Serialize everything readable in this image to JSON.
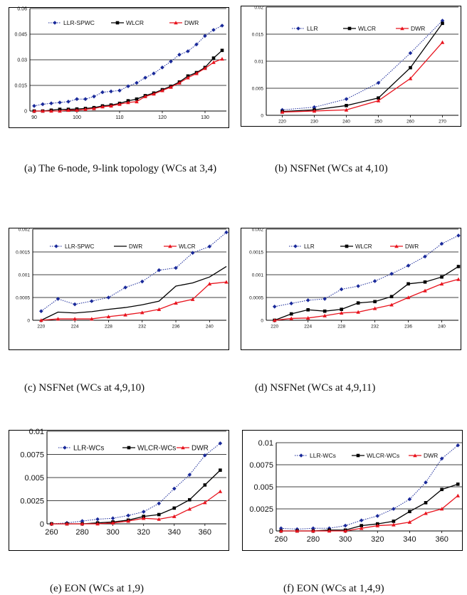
{
  "chart_data": [
    {
      "type": "line",
      "caption": "(a) The 6-node, 9-link topology (WCs at 3,4)",
      "x": [
        90,
        92,
        94,
        96,
        98,
        100,
        102,
        104,
        106,
        108,
        110,
        112,
        114,
        116,
        118,
        120,
        122,
        124,
        126,
        128,
        130,
        132,
        134
      ],
      "xticks": [
        "90",
        "100",
        "110",
        "120",
        "130"
      ],
      "xtick_values": [
        90,
        100,
        110,
        120,
        130
      ],
      "yticks": [
        "0",
        "0.015",
        "0.03",
        "0.045",
        "0.06"
      ],
      "ylim": [
        0,
        0.06
      ],
      "xlim": [
        89,
        135
      ],
      "series": [
        {
          "name": "LLR-SPWC",
          "color": "#1a2a9a",
          "style": "dotted",
          "marker": "diamond",
          "values": [
            0.003,
            0.004,
            0.0045,
            0.005,
            0.0055,
            0.007,
            0.007,
            0.0085,
            0.011,
            0.0115,
            0.012,
            0.0145,
            0.0165,
            0.0195,
            0.022,
            0.0255,
            0.029,
            0.033,
            0.035,
            0.039,
            0.044,
            0.0475,
            0.05
          ]
        },
        {
          "name": "WLCR",
          "color": "#000000",
          "style": "solid",
          "marker": "square",
          "values": [
            0,
            0,
            0.0005,
            0.001,
            0.001,
            0.0012,
            0.0015,
            0.002,
            0.003,
            0.0035,
            0.0045,
            0.006,
            0.007,
            0.009,
            0.0105,
            0.0125,
            0.0145,
            0.017,
            0.0205,
            0.0225,
            0.0255,
            0.031,
            0.0355
          ]
        },
        {
          "name": "DWR",
          "color": "#e8141e",
          "style": "solid",
          "marker": "triangle",
          "values": [
            0,
            0,
            0,
            0,
            0.0005,
            0.0005,
            0.001,
            0.0015,
            0.0025,
            0.003,
            0.004,
            0.005,
            0.0055,
            0.0085,
            0.01,
            0.012,
            0.014,
            0.0165,
            0.0195,
            0.022,
            0.025,
            0.0285,
            0.0305
          ]
        }
      ]
    },
    {
      "type": "line",
      "caption": "(b) NSFNet (WCs at 4,10)",
      "x": [
        220,
        230,
        240,
        250,
        260,
        270
      ],
      "xticks": [
        "220",
        "230",
        "240",
        "250",
        "260",
        "270"
      ],
      "xtick_values": [
        220,
        230,
        240,
        250,
        260,
        270
      ],
      "yticks": [
        "0",
        "0.005",
        "0.01",
        "0.015",
        "0.02"
      ],
      "ylim": [
        0,
        0.02
      ],
      "xlim": [
        215,
        275
      ],
      "series": [
        {
          "name": "LLR",
          "color": "#1a2a9a",
          "style": "dotted",
          "marker": "diamond",
          "values": [
            0.001,
            0.0015,
            0.003,
            0.006,
            0.0115,
            0.0175
          ]
        },
        {
          "name": "WLCR",
          "color": "#000000",
          "style": "solid",
          "marker": "square",
          "values": [
            0.0007,
            0.001,
            0.0018,
            0.0032,
            0.0088,
            0.017
          ]
        },
        {
          "name": "DWR",
          "color": "#e8141e",
          "style": "solid",
          "marker": "triangle",
          "values": [
            0.0006,
            0.0008,
            0.001,
            0.0027,
            0.0068,
            0.0135
          ]
        }
      ]
    },
    {
      "type": "line",
      "caption": "(c) NSFNet (WCs at 4,9,10)",
      "x": [
        220,
        222,
        224,
        226,
        228,
        230,
        232,
        234,
        236,
        238,
        240,
        242
      ],
      "xticks": [
        "220",
        "224",
        "228",
        "232",
        "236",
        "240"
      ],
      "xtick_values": [
        220,
        224,
        228,
        232,
        236,
        240
      ],
      "yticks": [
        "0",
        "0.0005",
        "0.001",
        "0.0015",
        "0.002"
      ],
      "ylim": [
        0,
        0.002
      ],
      "xlim": [
        219,
        242
      ],
      "series": [
        {
          "name": "LLR-SPWC",
          "color": "#1a2a9a",
          "style": "dotted",
          "marker": "diamond",
          "values": [
            0.0002,
            0.00047,
            0.00035,
            0.00042,
            0.0005,
            0.00072,
            0.00085,
            0.0011,
            0.00115,
            0.00148,
            0.00162,
            0.00193
          ]
        },
        {
          "name": "DWR",
          "color": "#000000",
          "style": "solid",
          "marker": "none",
          "values": [
            0,
            0.00018,
            0.00016,
            0.00019,
            0.00024,
            0.00028,
            0.00034,
            0.00042,
            0.00075,
            0.00082,
            0.00095,
            0.00118
          ]
        },
        {
          "name": "WLCR",
          "color": "#e8141e",
          "style": "solid",
          "marker": "triangle",
          "values": [
            0,
            3e-05,
            3e-05,
            3e-05,
            8e-05,
            0.00012,
            0.00017,
            0.00024,
            0.00038,
            0.00046,
            0.0008,
            0.00084
          ]
        }
      ]
    },
    {
      "type": "line",
      "caption": "(d) NSFNet (WCs at 4,9,11)",
      "x": [
        220,
        222,
        224,
        226,
        228,
        230,
        232,
        234,
        236,
        238,
        240,
        242
      ],
      "xticks": [
        "220",
        "224",
        "228",
        "232",
        "236",
        "240"
      ],
      "xtick_values": [
        220,
        224,
        228,
        232,
        236,
        240
      ],
      "yticks": [
        "0",
        "0.0005",
        "0.001",
        "0.0015",
        "0.002"
      ],
      "ylim": [
        0,
        0.002
      ],
      "xlim": [
        219,
        242
      ],
      "series": [
        {
          "name": "LLR",
          "color": "#1a2a9a",
          "style": "dotted",
          "marker": "diamond",
          "values": [
            0.0003,
            0.00037,
            0.00044,
            0.00047,
            0.00068,
            0.00075,
            0.00086,
            0.00102,
            0.0012,
            0.0014,
            0.00168,
            0.00186
          ]
        },
        {
          "name": "WLCR",
          "color": "#000000",
          "style": "solid",
          "marker": "square",
          "values": [
            0,
            0.00014,
            0.00023,
            0.0002,
            0.00024,
            0.00038,
            0.00041,
            0.00052,
            0.0008,
            0.00084,
            0.00095,
            0.00118
          ]
        },
        {
          "name": "DWR",
          "color": "#e8141e",
          "style": "solid",
          "marker": "triangle",
          "values": [
            0,
            4e-05,
            5e-05,
            0.0001,
            0.00016,
            0.00018,
            0.00026,
            0.00034,
            0.0005,
            0.00065,
            0.0008,
            0.0009
          ]
        }
      ]
    },
    {
      "type": "line",
      "caption": "(e) EON (WCs at 1,9)",
      "x": [
        260,
        270,
        280,
        290,
        300,
        310,
        320,
        330,
        340,
        350,
        360,
        370
      ],
      "xticks": [
        "260",
        "280",
        "300",
        "320",
        "340",
        "360"
      ],
      "xtick_values": [
        260,
        280,
        300,
        320,
        340,
        360
      ],
      "yticks": [
        "0",
        "0.0025",
        "0.005",
        "0.0075",
        "0.01"
      ],
      "ylim": [
        0,
        0.01
      ],
      "xlim": [
        257,
        374
      ],
      "series": [
        {
          "name": "LLR-WCs",
          "color": "#1a2a9a",
          "style": "dotted",
          "marker": "diamond",
          "values": [
            0,
            0.0001,
            0.0003,
            0.0005,
            0.0006,
            0.0009,
            0.0013,
            0.0022,
            0.0038,
            0.0053,
            0.0074,
            0.0087
          ]
        },
        {
          "name": "WLCR-WCs",
          "color": "#000000",
          "style": "solid",
          "marker": "square",
          "values": [
            0,
            0,
            0,
            0.0001,
            0.0002,
            0.0004,
            0.0008,
            0.001,
            0.0017,
            0.0026,
            0.0042,
            0.0058
          ]
        },
        {
          "name": "DWR",
          "color": "#e8141e",
          "style": "solid",
          "marker": "triangle",
          "values": [
            0,
            0,
            0,
            0,
            0.0001,
            0.0003,
            0.0006,
            0.0005,
            0.0008,
            0.0016,
            0.0023,
            0.0035
          ]
        }
      ]
    },
    {
      "type": "line",
      "caption": "(f) EON (WCs at 1,4,9)",
      "x": [
        260,
        270,
        280,
        290,
        300,
        310,
        320,
        330,
        340,
        350,
        360,
        370
      ],
      "xticks": [
        "260",
        "280",
        "300",
        "320",
        "340",
        "360"
      ],
      "xtick_values": [
        260,
        280,
        300,
        320,
        340,
        360
      ],
      "yticks": [
        "0",
        "0.0025",
        "0.005",
        "0.0075",
        "0.01"
      ],
      "ylim": [
        0,
        0.01
      ],
      "xlim": [
        257,
        373
      ],
      "series": [
        {
          "name": "LLR-WCs",
          "color": "#1a2a9a",
          "style": "dotted",
          "marker": "diamond",
          "values": [
            0.0003,
            0.0002,
            0.0003,
            0.0003,
            0.0006,
            0.0012,
            0.0017,
            0.0025,
            0.0036,
            0.0055,
            0.0082,
            0.0097
          ]
        },
        {
          "name": "WLCR-WCs",
          "color": "#000000",
          "style": "solid",
          "marker": "square",
          "values": [
            0,
            0,
            0,
            0.0001,
            0.0001,
            0.0006,
            0.0008,
            0.0011,
            0.0022,
            0.0032,
            0.0047,
            0.0053
          ]
        },
        {
          "name": "DWR",
          "color": "#e8141e",
          "style": "solid",
          "marker": "triangle",
          "values": [
            0,
            0,
            0,
            0,
            0,
            0.0003,
            0.0006,
            0.0007,
            0.001,
            0.002,
            0.0025,
            0.004
          ]
        }
      ]
    }
  ]
}
